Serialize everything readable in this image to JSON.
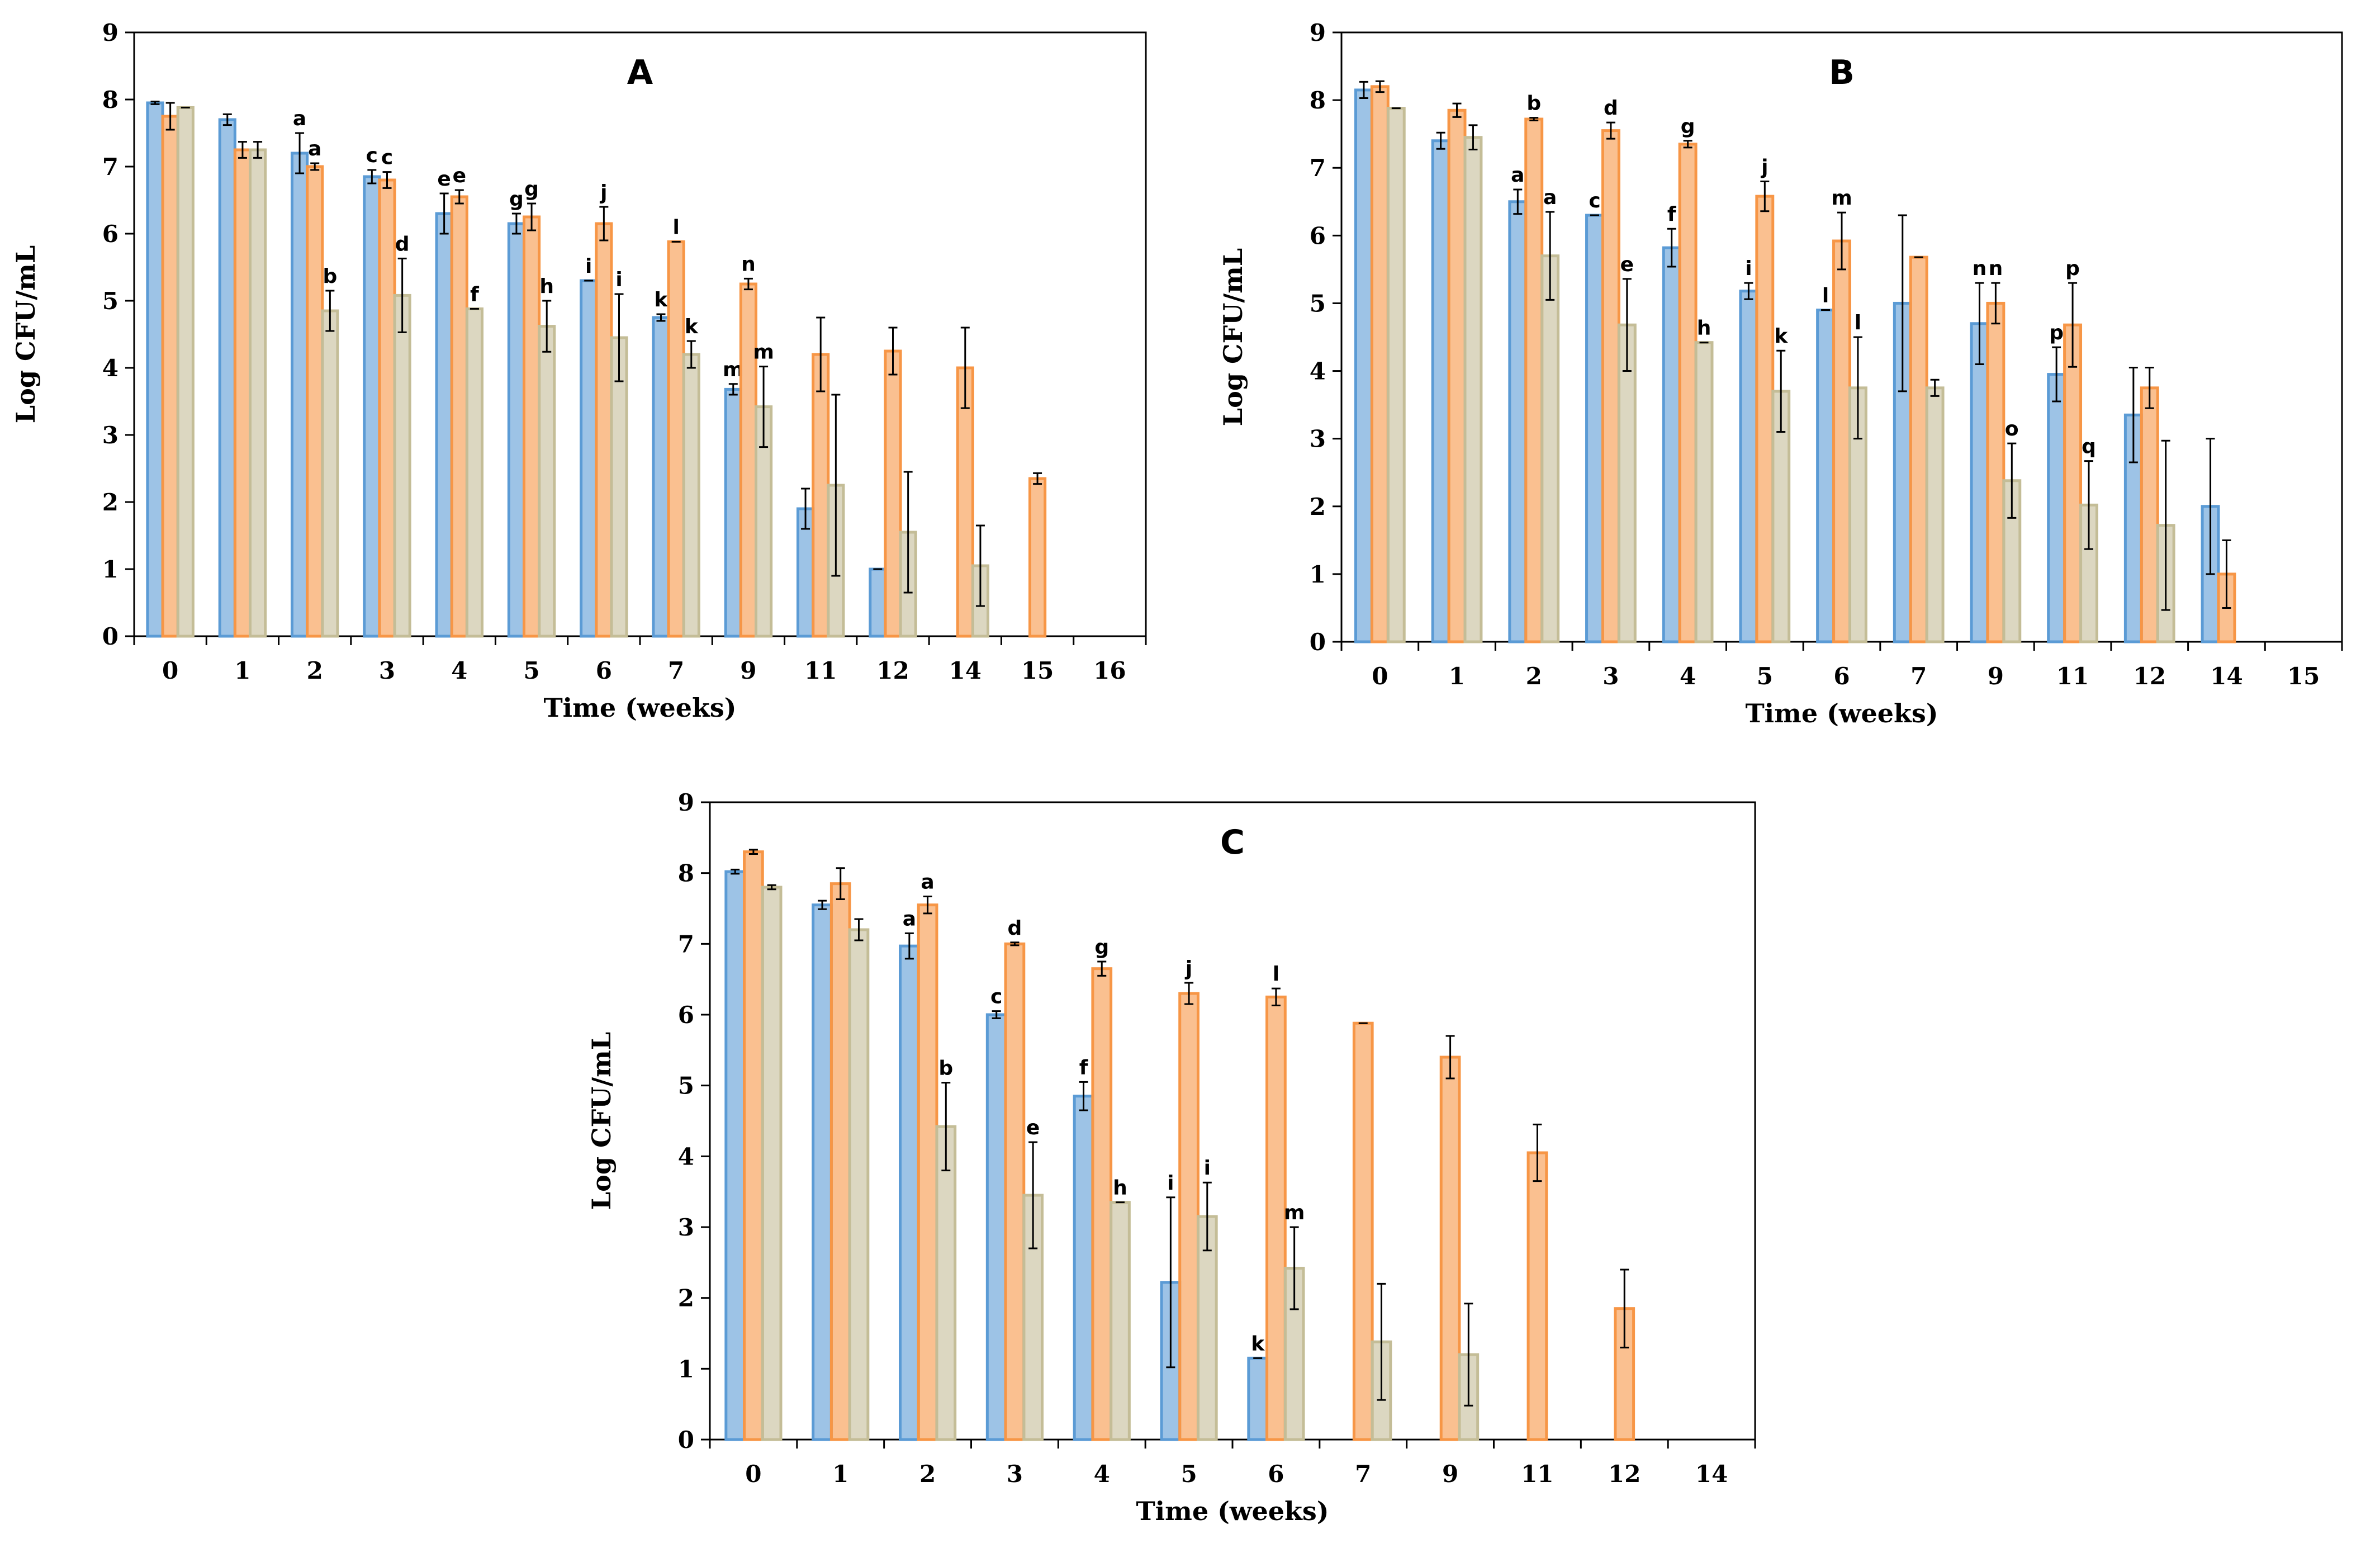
{
  "chart_data": [
    {
      "type": "bar",
      "title": "A",
      "xlabel": "Time (weeks)",
      "ylabel": "Log CFU/mL",
      "ylim": [
        0,
        9
      ],
      "yticks": [
        0,
        1,
        2,
        3,
        4,
        5,
        6,
        7,
        8,
        9
      ],
      "categories": [
        "0",
        "1",
        "2",
        "3",
        "4",
        "5",
        "6",
        "7",
        "9",
        "11",
        "12",
        "14",
        "15",
        "16"
      ],
      "series": [
        {
          "name": "series 1",
          "color": "#5b9bd5",
          "values": [
            7.95,
            7.7,
            7.2,
            6.85,
            6.3,
            6.15,
            5.3,
            4.75,
            3.68,
            1.9,
            1.0,
            null,
            null,
            null
          ],
          "errors": [
            0.02,
            0.08,
            0.3,
            0.1,
            0.3,
            0.15,
            0.0,
            0.05,
            0.08,
            0.3,
            0.0,
            null,
            null,
            null
          ],
          "labels": [
            "",
            "",
            "a",
            "c",
            "e",
            "g",
            "i",
            "k",
            "m",
            "",
            "",
            "",
            "",
            ""
          ]
        },
        {
          "name": "series 2",
          "color": "#f79646",
          "values": [
            7.75,
            7.25,
            7.0,
            6.8,
            6.55,
            6.25,
            6.15,
            5.88,
            5.25,
            4.2,
            4.25,
            4.0,
            2.35,
            null
          ],
          "errors": [
            0.2,
            0.12,
            0.05,
            0.12,
            0.1,
            0.2,
            0.25,
            0.0,
            0.08,
            0.55,
            0.35,
            0.6,
            0.08,
            null
          ],
          "labels": [
            "",
            "",
            "a",
            "c",
            "e",
            "g",
            "j",
            "l",
            "n",
            "",
            "",
            "",
            "",
            ""
          ]
        },
        {
          "name": "series 3",
          "color": "#c4bd97",
          "values": [
            7.88,
            7.25,
            4.85,
            5.08,
            4.88,
            4.62,
            4.45,
            4.2,
            3.42,
            2.25,
            1.55,
            1.05,
            null,
            null
          ],
          "errors": [
            0.0,
            0.12,
            0.3,
            0.55,
            0.0,
            0.38,
            0.65,
            0.2,
            0.6,
            1.35,
            0.9,
            0.6,
            null,
            null
          ],
          "labels": [
            "",
            "",
            "b",
            "d",
            "f",
            "h",
            "i",
            "k",
            "m",
            "",
            "",
            "",
            "",
            ""
          ]
        }
      ]
    },
    {
      "type": "bar",
      "title": "B",
      "xlabel": "Time (weeks)",
      "ylabel": "Log CFU/mL",
      "ylim": [
        0,
        9
      ],
      "yticks": [
        0,
        1,
        2,
        3,
        4,
        5,
        6,
        7,
        8,
        9
      ],
      "categories": [
        "0",
        "1",
        "2",
        "3",
        "4",
        "5",
        "6",
        "7",
        "9",
        "11",
        "12",
        "14",
        "15"
      ],
      "series": [
        {
          "name": "series 1",
          "color": "#5b9bd5",
          "values": [
            8.15,
            7.4,
            6.5,
            6.3,
            5.82,
            5.18,
            4.9,
            5.0,
            4.7,
            3.95,
            3.35,
            2.0,
            null
          ],
          "errors": [
            0.12,
            0.12,
            0.18,
            0.0,
            0.28,
            0.12,
            0.0,
            1.3,
            0.6,
            0.4,
            0.7,
            1.0,
            null
          ],
          "labels": [
            "",
            "",
            "a",
            "c",
            "f",
            "i",
            "l",
            "",
            "n",
            "p",
            "",
            "",
            ""
          ]
        },
        {
          "name": "series 2",
          "color": "#f79646",
          "values": [
            8.2,
            7.85,
            7.72,
            7.55,
            7.35,
            6.58,
            5.92,
            5.68,
            5.0,
            4.68,
            3.75,
            1.0,
            null
          ],
          "errors": [
            0.08,
            0.1,
            0.02,
            0.12,
            0.05,
            0.22,
            0.42,
            0.0,
            0.3,
            0.62,
            0.3,
            0.5,
            null
          ],
          "labels": [
            "",
            "",
            "b",
            "d",
            "g",
            "j",
            "m",
            "",
            "n",
            "p",
            "",
            "",
            ""
          ]
        },
        {
          "name": "series 3",
          "color": "#c4bd97",
          "values": [
            7.88,
            7.45,
            5.7,
            4.68,
            4.42,
            3.7,
            3.75,
            3.75,
            2.38,
            2.02,
            1.72,
            null,
            null
          ],
          "errors": [
            0.0,
            0.18,
            0.65,
            0.68,
            0.0,
            0.6,
            0.75,
            0.12,
            0.55,
            0.65,
            1.25,
            null,
            null
          ],
          "labels": [
            "",
            "",
            "a",
            "e",
            "h",
            "k",
            "l",
            "",
            "o",
            "q",
            "",
            "",
            ""
          ]
        }
      ]
    },
    {
      "type": "bar",
      "title": "C",
      "xlabel": "Time (weeks)",
      "ylabel": "Log CFU/mL",
      "ylim": [
        0,
        9
      ],
      "yticks": [
        0,
        1,
        2,
        3,
        4,
        5,
        6,
        7,
        8,
        9
      ],
      "categories": [
        "0",
        "1",
        "2",
        "3",
        "4",
        "5",
        "6",
        "7",
        "9",
        "11",
        "12",
        "14"
      ],
      "series": [
        {
          "name": "series 1",
          "color": "#5b9bd5",
          "values": [
            8.02,
            7.55,
            6.97,
            6.0,
            4.85,
            2.22,
            1.15,
            null,
            null,
            null,
            null,
            null
          ],
          "errors": [
            0.03,
            0.06,
            0.18,
            0.05,
            0.2,
            1.2,
            0.0,
            null,
            null,
            null,
            null,
            null
          ],
          "labels": [
            "",
            "",
            "a",
            "c",
            "f",
            "i",
            "k",
            "",
            "",
            "",
            "",
            ""
          ]
        },
        {
          "name": "series 2",
          "color": "#f79646",
          "values": [
            8.3,
            7.85,
            7.55,
            7.0,
            6.65,
            6.3,
            6.25,
            5.88,
            5.4,
            4.05,
            1.85,
            null
          ],
          "errors": [
            0.03,
            0.22,
            0.12,
            0.02,
            0.1,
            0.15,
            0.12,
            0.0,
            0.3,
            0.4,
            0.55,
            null
          ],
          "labels": [
            "",
            "",
            "a",
            "d",
            "g",
            "j",
            "l",
            "",
            "",
            "",
            "",
            ""
          ]
        },
        {
          "name": "series 3",
          "color": "#c4bd97",
          "values": [
            7.8,
            7.2,
            4.42,
            3.45,
            3.35,
            3.15,
            2.42,
            1.38,
            1.2,
            null,
            null,
            null
          ],
          "errors": [
            0.03,
            0.15,
            0.62,
            0.75,
            0.0,
            0.48,
            0.58,
            0.82,
            0.72,
            null,
            null,
            null
          ],
          "labels": [
            "",
            "",
            "b",
            "e",
            "h",
            "i",
            "m",
            "",
            "",
            "",
            "",
            ""
          ]
        }
      ]
    }
  ]
}
